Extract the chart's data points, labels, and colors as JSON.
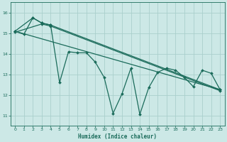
{
  "xlabel": "Humidex (Indice chaleur)",
  "bg_color": "#cce8e6",
  "grid_color": "#aacfcc",
  "line_color": "#1a6b5a",
  "xlim": [
    -0.5,
    23.5
  ],
  "ylim": [
    10.5,
    16.5
  ],
  "yticks": [
    11,
    12,
    13,
    14,
    15,
    16
  ],
  "xticks": [
    0,
    1,
    2,
    3,
    4,
    5,
    6,
    7,
    8,
    9,
    10,
    11,
    12,
    13,
    14,
    15,
    16,
    17,
    18,
    19,
    20,
    21,
    22,
    23
  ],
  "zigzag_x": [
    0,
    1,
    2,
    3,
    4,
    5,
    6,
    7,
    8,
    9,
    10,
    11,
    12,
    13,
    14,
    15,
    16,
    17,
    18,
    19,
    20,
    21,
    22,
    23
  ],
  "zigzag_y": [
    15.1,
    14.95,
    15.75,
    15.5,
    15.4,
    12.6,
    14.1,
    14.05,
    14.05,
    13.6,
    12.85,
    11.1,
    12.05,
    13.3,
    11.05,
    12.35,
    13.1,
    13.3,
    13.2,
    12.85,
    12.4,
    13.2,
    13.05,
    12.25
  ],
  "upper_line_x": [
    0,
    2,
    3,
    4,
    23
  ],
  "upper_line_y": [
    15.1,
    15.75,
    15.5,
    15.4,
    12.25
  ],
  "lower_line_x": [
    0,
    3,
    4,
    23
  ],
  "lower_line_y": [
    15.05,
    15.45,
    15.35,
    12.2
  ],
  "trend_x": [
    0,
    23
  ],
  "trend_y": [
    15.1,
    12.25
  ]
}
